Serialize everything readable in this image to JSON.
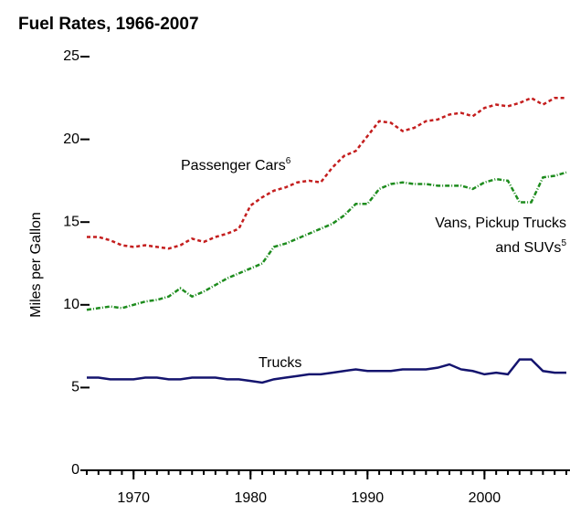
{
  "chart_data": {
    "type": "line",
    "title": "Fuel Rates, 1966-2007",
    "y_label": "Miles per Gallon",
    "x": [
      1966,
      1967,
      1968,
      1969,
      1970,
      1971,
      1972,
      1973,
      1974,
      1975,
      1976,
      1977,
      1978,
      1979,
      1980,
      1981,
      1982,
      1983,
      1984,
      1985,
      1986,
      1987,
      1988,
      1989,
      1990,
      1991,
      1992,
      1993,
      1994,
      1995,
      1996,
      1997,
      1998,
      1999,
      2000,
      2001,
      2002,
      2003,
      2004,
      2005,
      2006,
      2007
    ],
    "xlim": [
      1966,
      2007
    ],
    "xticks": [
      1970,
      1980,
      1990,
      2000
    ],
    "ylim": [
      0,
      25
    ],
    "yticks": [
      0,
      5,
      10,
      15,
      20,
      25
    ],
    "series": [
      {
        "label": [
          "Passenger Cars"
        ],
        "footnote": "6",
        "color": "#c41e1e",
        "dash": "4,3",
        "values": [
          14.1,
          14.1,
          13.9,
          13.6,
          13.5,
          13.6,
          13.5,
          13.4,
          13.6,
          14.0,
          13.8,
          14.1,
          14.3,
          14.6,
          16.0,
          16.5,
          16.9,
          17.1,
          17.4,
          17.5,
          17.4,
          18.3,
          19.0,
          19.3,
          20.2,
          21.1,
          21.0,
          20.5,
          20.7,
          21.1,
          21.2,
          21.5,
          21.6,
          21.4,
          21.9,
          22.1,
          22.0,
          22.2,
          22.5,
          22.1,
          22.5,
          22.5
        ]
      },
      {
        "label": [
          "Vans, Pickup Trucks",
          "and SUVs"
        ],
        "footnote": "5",
        "color": "#1e8c1e",
        "dash": "5,2,1,2",
        "values": [
          9.7,
          9.8,
          9.9,
          9.8,
          10.0,
          10.2,
          10.3,
          10.5,
          11.0,
          10.5,
          10.8,
          11.2,
          11.6,
          11.9,
          12.2,
          12.5,
          13.5,
          13.7,
          14.0,
          14.3,
          14.6,
          14.9,
          15.4,
          16.1,
          16.1,
          17.0,
          17.3,
          17.4,
          17.3,
          17.3,
          17.2,
          17.2,
          17.2,
          17.0,
          17.4,
          17.6,
          17.5,
          16.2,
          16.2,
          17.7,
          17.8,
          18.0
        ]
      },
      {
        "label": [
          "Trucks"
        ],
        "color": "#14146e",
        "dash": "none",
        "values": [
          5.6,
          5.6,
          5.5,
          5.5,
          5.5,
          5.6,
          5.6,
          5.5,
          5.5,
          5.6,
          5.6,
          5.6,
          5.5,
          5.5,
          5.4,
          5.3,
          5.5,
          5.6,
          5.7,
          5.8,
          5.8,
          5.9,
          6.0,
          6.1,
          6.0,
          6.0,
          6.0,
          6.1,
          6.1,
          6.1,
          6.2,
          6.4,
          6.1,
          6.0,
          5.8,
          5.9,
          5.8,
          6.7,
          6.7,
          6.0,
          5.9,
          5.9
        ]
      }
    ]
  }
}
